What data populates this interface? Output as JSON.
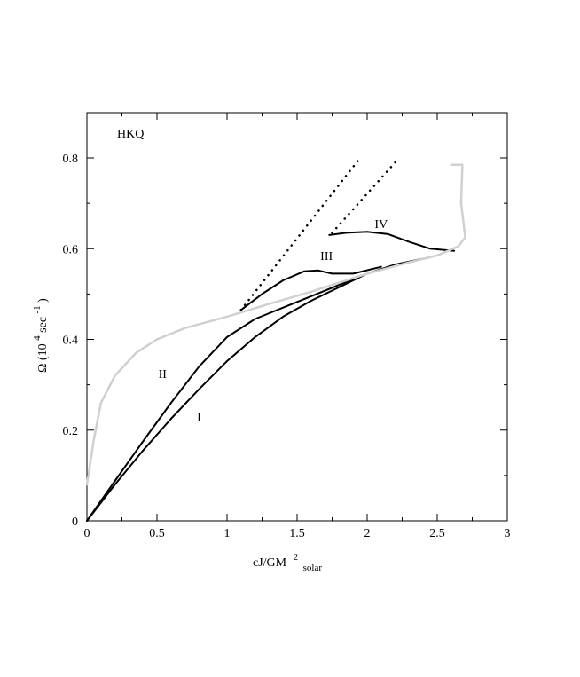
{
  "chart_data": {
    "type": "line",
    "title": "",
    "panel_label": "HKQ",
    "xlabel": {
      "main": "cJ/GM",
      "superscript": "2",
      "subscript": "solar"
    },
    "ylabel": {
      "main": "Ω (10",
      "superscript": "4",
      "unit": " sec",
      "unit_superscript": "-1",
      "close": ")"
    },
    "xlim": [
      0,
      3
    ],
    "ylim": [
      0,
      0.9
    ],
    "xticks": [
      "0",
      "0.5",
      "1",
      "1.5",
      "2",
      "2.5",
      "3"
    ],
    "yticks": [
      "0",
      "0.2",
      "0.4",
      "0.6",
      "0.8"
    ],
    "grid": false,
    "series": [
      {
        "label": "I",
        "color": "#000000",
        "style": "solid",
        "points": [
          [
            0,
            0
          ],
          [
            0.2,
            0.08
          ],
          [
            0.4,
            0.155
          ],
          [
            0.6,
            0.225
          ],
          [
            0.8,
            0.29
          ],
          [
            1.0,
            0.352
          ],
          [
            1.2,
            0.405
          ],
          [
            1.4,
            0.45
          ],
          [
            1.6,
            0.485
          ],
          [
            1.8,
            0.515
          ],
          [
            2.0,
            0.545
          ],
          [
            2.2,
            0.565
          ],
          [
            2.4,
            0.578
          ]
        ]
      },
      {
        "label": "II",
        "color": "#000000",
        "style": "solid",
        "points": [
          [
            0,
            0
          ],
          [
            0.2,
            0.088
          ],
          [
            0.4,
            0.175
          ],
          [
            0.6,
            0.26
          ],
          [
            0.8,
            0.34
          ],
          [
            1.0,
            0.405
          ],
          [
            1.2,
            0.445
          ],
          [
            1.4,
            0.47
          ],
          [
            1.6,
            0.495
          ],
          [
            1.8,
            0.52
          ],
          [
            1.92,
            0.535
          ]
        ]
      },
      {
        "label": "III",
        "color": "#000000",
        "style": "solid",
        "points": [
          [
            1.1,
            0.465
          ],
          [
            1.25,
            0.5
          ],
          [
            1.4,
            0.53
          ],
          [
            1.55,
            0.55
          ],
          [
            1.65,
            0.552
          ],
          [
            1.75,
            0.545
          ],
          [
            1.9,
            0.545
          ],
          [
            2.1,
            0.56
          ]
        ]
      },
      {
        "label": "IV",
        "color": "#000000",
        "style": "solid",
        "points": [
          [
            1.73,
            0.63
          ],
          [
            1.85,
            0.635
          ],
          [
            2.0,
            0.637
          ],
          [
            2.15,
            0.632
          ],
          [
            2.3,
            0.615
          ],
          [
            2.45,
            0.6
          ],
          [
            2.62,
            0.595
          ]
        ]
      },
      {
        "label": "",
        "color": "#d0d0d0",
        "style": "solid",
        "points": [
          [
            0,
            0.08
          ],
          [
            0.05,
            0.18
          ],
          [
            0.1,
            0.26
          ],
          [
            0.2,
            0.32
          ],
          [
            0.35,
            0.37
          ],
          [
            0.5,
            0.4
          ],
          [
            0.7,
            0.425
          ],
          [
            1.0,
            0.45
          ],
          [
            1.3,
            0.478
          ],
          [
            1.6,
            0.505
          ],
          [
            2.0,
            0.545
          ],
          [
            2.3,
            0.57
          ],
          [
            2.5,
            0.585
          ],
          [
            2.65,
            0.605
          ],
          [
            2.7,
            0.625
          ],
          [
            2.67,
            0.7
          ],
          [
            2.68,
            0.785
          ],
          [
            2.6,
            0.785
          ]
        ]
      },
      {
        "label": "",
        "color": "#000000",
        "style": "dotted",
        "points": [
          [
            1.1,
            0.465
          ],
          [
            1.95,
            0.8
          ]
        ]
      },
      {
        "label": "",
        "color": "#000000",
        "style": "dotted",
        "points": [
          [
            1.75,
            0.635
          ],
          [
            2.2,
            0.79
          ]
        ]
      }
    ],
    "annotations": [
      {
        "text": "I",
        "x": 0.8,
        "y": 0.22
      },
      {
        "text": "II",
        "x": 0.54,
        "y": 0.315
      },
      {
        "text": "III",
        "x": 1.71,
        "y": 0.575
      },
      {
        "text": "IV",
        "x": 2.1,
        "y": 0.645
      }
    ]
  }
}
